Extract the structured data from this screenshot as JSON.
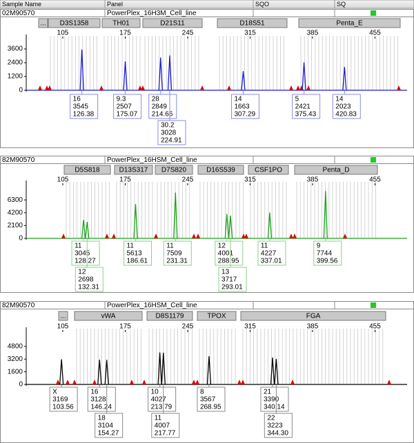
{
  "header": {
    "columns": [
      "Sample Name",
      "Panel",
      "SQO",
      "SQ"
    ]
  },
  "panels": [
    {
      "sample_name": "02M90570",
      "panel": "PowerPlex_16H3M_Cell_line",
      "markers": [
        "...",
        "D3S1358",
        "TH01",
        "D21S11",
        "D18S51",
        "Penta_E"
      ],
      "xlim": [
        64,
        491
      ],
      "xticks": [
        105,
        175,
        245,
        315,
        385,
        455
      ],
      "ylim": [
        0,
        4500
      ],
      "yticks": [
        0,
        1200,
        2400,
        3600
      ],
      "color": "#1a1ad0",
      "box_color": "#8a8ae0",
      "peaks": [
        {
          "allele": "16",
          "height": 3545,
          "size": "126.38"
        },
        {
          "allele": "9.3",
          "height": 2507,
          "size": "175.07"
        },
        {
          "allele": "28",
          "height": 2849,
          "size": "214.66"
        },
        {
          "allele": "30.2",
          "height": 3028,
          "size": "224.91"
        },
        {
          "allele": "14",
          "height": 1663,
          "size": "307.29"
        },
        {
          "allele": "5",
          "height": 2421,
          "size": "375.43"
        },
        {
          "allele": "14",
          "height": 2023,
          "size": "420.83"
        }
      ]
    },
    {
      "sample_name": "82M90570",
      "panel": "PowerPlex_16HSM_Cell_line",
      "markers": [
        "D5S818",
        "D13S317",
        "D7S820",
        "D16S539",
        "CSF1PO",
        "Penta_D"
      ],
      "xlim": [
        64,
        491
      ],
      "xticks": [
        105,
        175,
        245,
        315,
        385,
        455
      ],
      "ylim": [
        0,
        8800
      ],
      "yticks": [
        0,
        2100,
        4200,
        6300
      ],
      "color": "#1aa01a",
      "box_color": "#8ad08a",
      "peaks": [
        {
          "allele": "11",
          "height": 3045,
          "size": "128.27"
        },
        {
          "allele": "12",
          "height": 2698,
          "size": "132.31"
        },
        {
          "allele": "11",
          "height": 5613,
          "size": "186.61"
        },
        {
          "allele": "11",
          "height": 7509,
          "size": "231.31"
        },
        {
          "allele": "12",
          "height": 4001,
          "size": "288.95"
        },
        {
          "allele": "13",
          "height": 3717,
          "size": "293.01"
        },
        {
          "allele": "11",
          "height": 4227,
          "size": "337.01"
        },
        {
          "allele": "9",
          "height": 7744,
          "size": "399.56"
        }
      ]
    },
    {
      "sample_name": "82M90570",
      "panel": "PowerPlex_16HSM_Cell_line",
      "markers": [
        "...",
        "vWA",
        "D8S1179",
        "TPOX",
        "FGA"
      ],
      "xlim": [
        64,
        491
      ],
      "xticks": [
        105,
        175,
        245,
        315,
        385,
        455
      ],
      "ylim": [
        0,
        6700
      ],
      "yticks": [
        0,
        1600,
        3200,
        4800
      ],
      "color": "#000000",
      "box_color": "#888888",
      "peaks": [
        {
          "allele": "X",
          "height": 3169,
          "size": "103.56"
        },
        {
          "allele": "16",
          "height": 3128,
          "size": "146.24"
        },
        {
          "allele": "18",
          "height": 3104,
          "size": "154.27"
        },
        {
          "allele": "10",
          "height": 4027,
          "size": "213.79"
        },
        {
          "allele": "11",
          "height": 4007,
          "size": "217.77"
        },
        {
          "allele": "8",
          "height": 3567,
          "size": "268.95"
        },
        {
          "allele": "21",
          "height": 3390,
          "size": "340.14"
        },
        {
          "allele": "22",
          "height": 3223,
          "size": "344.30"
        }
      ]
    }
  ]
}
